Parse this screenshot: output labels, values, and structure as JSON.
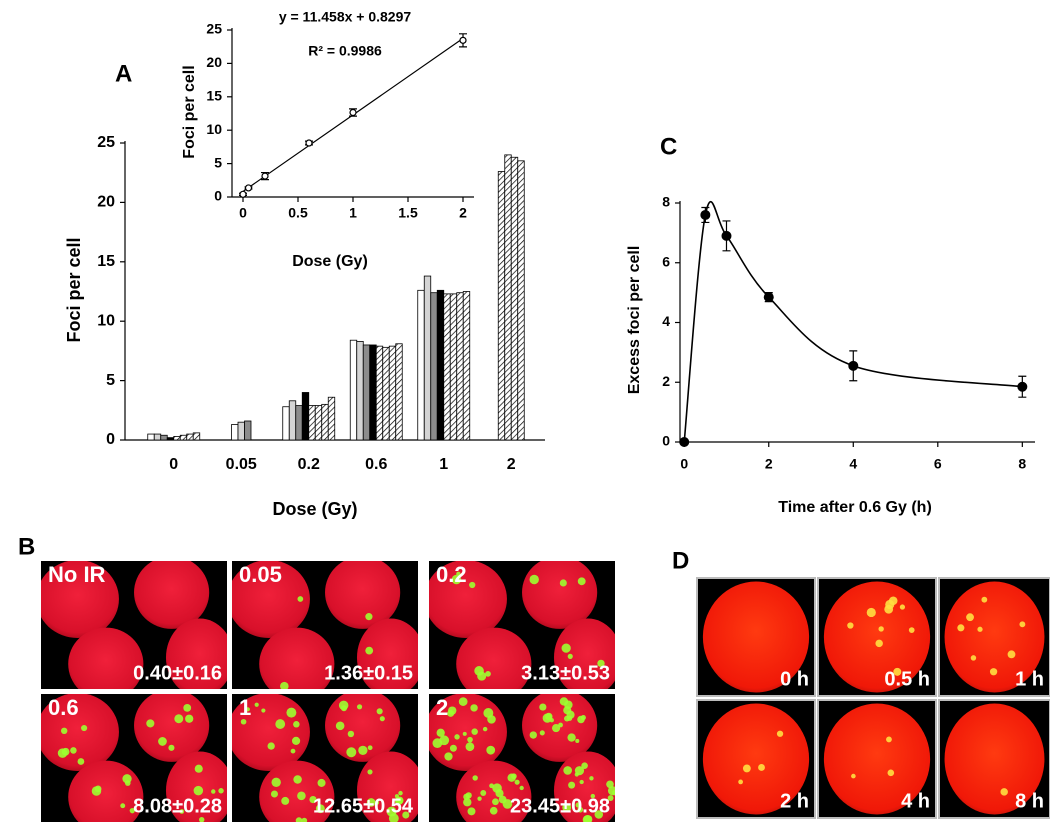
{
  "chart_data": [
    {
      "type": "bar",
      "panel_label": "A",
      "xlabel": "Dose (Gy)",
      "ylabel": "Foci per cell",
      "categories": [
        "0",
        "0.05",
        "0.2",
        "0.6",
        "1",
        "2"
      ],
      "ylim": [
        0,
        25
      ],
      "yticks": [
        0,
        5,
        10,
        15,
        20,
        25
      ],
      "series": [
        {
          "color": "#ffffff",
          "hatch": false,
          "values": [
            0.5,
            1.3,
            2.8,
            8.4,
            12.6,
            null
          ]
        },
        {
          "color": "#d4d4d4",
          "hatch": false,
          "values": [
            0.5,
            1.5,
            3.3,
            8.3,
            13.8,
            null
          ]
        },
        {
          "color": "#8c8c8c",
          "hatch": false,
          "values": [
            0.4,
            1.6,
            2.9,
            8.0,
            12.4,
            null
          ]
        },
        {
          "color": "#000000",
          "hatch": false,
          "values": [
            0.2,
            null,
            4.0,
            8.0,
            12.6,
            null
          ]
        },
        {
          "color": "#ffffff",
          "hatch": true,
          "values": [
            0.3,
            null,
            2.9,
            7.9,
            12.3,
            22.6
          ]
        },
        {
          "color": "#ffffff",
          "hatch": true,
          "values": [
            0.4,
            null,
            2.9,
            7.8,
            12.3,
            24.0
          ]
        },
        {
          "color": "#ffffff",
          "hatch": true,
          "values": [
            0.5,
            null,
            3.0,
            7.9,
            12.4,
            23.8
          ]
        },
        {
          "color": "#ffffff",
          "hatch": true,
          "values": [
            0.6,
            null,
            3.6,
            8.1,
            12.5,
            23.5
          ]
        }
      ]
    },
    {
      "type": "scatter",
      "xlabel": "Dose (Gy)",
      "ylabel": "Foci per cell",
      "annotations": [
        "y = 11.458x + 0.8297",
        "R² = 0.9986"
      ],
      "fit_slope": 11.458,
      "fit_intercept": 0.8297,
      "x": [
        0,
        0.05,
        0.2,
        0.6,
        1,
        2
      ],
      "values": [
        0.4,
        1.36,
        3.13,
        8.08,
        12.65,
        23.45
      ],
      "errors": [
        0.16,
        0.15,
        0.53,
        0.28,
        0.54,
        0.98
      ],
      "xlim": [
        -0.1,
        2.1
      ],
      "xticks": [
        0,
        0.5,
        1,
        1.5,
        2
      ],
      "ylim": [
        0,
        25
      ],
      "yticks": [
        0,
        5,
        10,
        15,
        20,
        25
      ],
      "color": "#000000"
    },
    {
      "type": "line",
      "panel_label": "C",
      "xlabel": "Time after 0.6 Gy (h)",
      "ylabel": "Excess foci per cell",
      "x": [
        0,
        0.5,
        1,
        2,
        4,
        8
      ],
      "values": [
        0,
        7.6,
        6.9,
        4.85,
        2.55,
        1.85
      ],
      "errors": [
        0,
        0.25,
        0.5,
        0.15,
        0.5,
        0.35
      ],
      "xlim": [
        -0.1,
        8.3
      ],
      "xticks": [
        0,
        2,
        4,
        6,
        8
      ],
      "ylim": [
        0,
        8
      ],
      "yticks": [
        0,
        2,
        4,
        6,
        8
      ],
      "color": "#000000"
    }
  ],
  "microscopy": [
    {
      "panel_label": "B",
      "images": [
        {
          "label": "No IR",
          "value": "0.40±0.16"
        },
        {
          "label": "0.05",
          "value": "1.36±0.15"
        },
        {
          "label": "0.2",
          "value": "3.13±0.53"
        },
        {
          "label": "0.6",
          "value": "8.08±0.28"
        },
        {
          "label": "1",
          "value": "12.65±0.54"
        },
        {
          "label": "2",
          "value": "23.45±0.98"
        }
      ]
    },
    {
      "panel_label": "D",
      "images": [
        {
          "label": "0 h"
        },
        {
          "label": "0.5 h"
        },
        {
          "label": "1 h"
        },
        {
          "label": "2 h"
        },
        {
          "label": "4 h"
        },
        {
          "label": "8 h"
        }
      ]
    }
  ]
}
